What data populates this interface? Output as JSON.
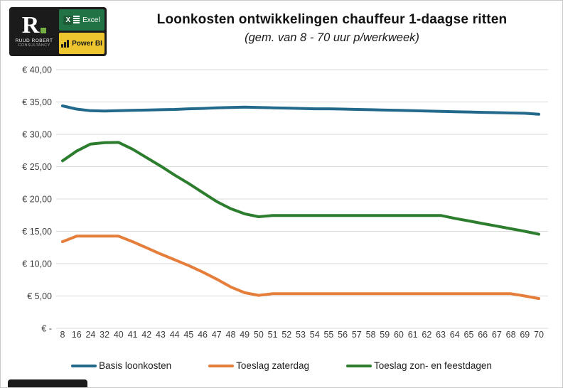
{
  "logo": {
    "monogram": "R",
    "line1": "RUUD ROBERT",
    "line2": "CONSULTANCY",
    "excel_label": "Excel",
    "powerbi_label": "Power BI"
  },
  "colors": {
    "excel_green": "#217346",
    "powerbi_yellow": "#ecc52f",
    "logo_black": "#1b1b1b",
    "logo_dot_green": "#76b043",
    "gridline": "#d9d9d9",
    "axis_text": "#3d3d3d"
  },
  "chart_data": {
    "type": "line",
    "title": "Loonkosten ontwikkelingen chauffeur 1-daagse ritten",
    "subtitle": "(gem. van  8 - 70 uur p/werkweek)",
    "xlabel": "",
    "ylabel": "",
    "ylim": [
      0,
      40
    ],
    "grid": true,
    "legend_position": "bottom",
    "categories": [
      "8",
      "16",
      "24",
      "32",
      "40",
      "41",
      "42",
      "43",
      "44",
      "45",
      "46",
      "47",
      "48",
      "49",
      "50",
      "51",
      "52",
      "53",
      "54",
      "55",
      "56",
      "57",
      "58",
      "59",
      "60",
      "61",
      "62",
      "63",
      "64",
      "65",
      "66",
      "67",
      "68",
      "69",
      "70"
    ],
    "y_ticks": [
      {
        "value": 40,
        "label": "€ 40,00"
      },
      {
        "value": 35,
        "label": "€ 35,00"
      },
      {
        "value": 30,
        "label": "€ 30,00"
      },
      {
        "value": 25,
        "label": "€ 25,00"
      },
      {
        "value": 20,
        "label": "€ 20,00"
      },
      {
        "value": 15,
        "label": "€ 15,00"
      },
      {
        "value": 10,
        "label": "€ 10,00"
      },
      {
        "value": 5,
        "label": "€ 5,00"
      },
      {
        "value": 0,
        "label": "€ -"
      }
    ],
    "series": [
      {
        "name": "Basis loonkosten",
        "color": "#23698c",
        "values": [
          34.4,
          33.9,
          33.65,
          33.6,
          33.65,
          33.7,
          33.75,
          33.8,
          33.85,
          33.95,
          34.0,
          34.1,
          34.15,
          34.2,
          34.15,
          34.1,
          34.05,
          34.0,
          33.95,
          33.95,
          33.9,
          33.85,
          33.8,
          33.75,
          33.7,
          33.65,
          33.6,
          33.55,
          33.5,
          33.45,
          33.4,
          33.35,
          33.3,
          33.25,
          33.1
        ]
      },
      {
        "name": "Toeslag zaterdag",
        "color": "#e57e3b",
        "values": [
          13.4,
          14.25,
          14.25,
          14.25,
          14.25,
          13.4,
          12.45,
          11.5,
          10.6,
          9.7,
          8.7,
          7.6,
          6.4,
          5.5,
          5.1,
          5.35,
          5.35,
          5.35,
          5.35,
          5.35,
          5.35,
          5.35,
          5.35,
          5.35,
          5.35,
          5.35,
          5.35,
          5.35,
          5.35,
          5.35,
          5.35,
          5.35,
          5.35,
          5.0,
          4.6
        ]
      },
      {
        "name": "Toeslag zon- en feestdagen",
        "color": "#2d7d2f",
        "values": [
          25.9,
          27.4,
          28.5,
          28.7,
          28.75,
          27.7,
          26.4,
          25.1,
          23.7,
          22.4,
          21.0,
          19.6,
          18.5,
          17.7,
          17.25,
          17.45,
          17.45,
          17.45,
          17.45,
          17.45,
          17.45,
          17.45,
          17.45,
          17.45,
          17.45,
          17.45,
          17.45,
          17.45,
          17.0,
          16.6,
          16.2,
          15.8,
          15.4,
          15.0,
          14.55
        ]
      }
    ]
  }
}
